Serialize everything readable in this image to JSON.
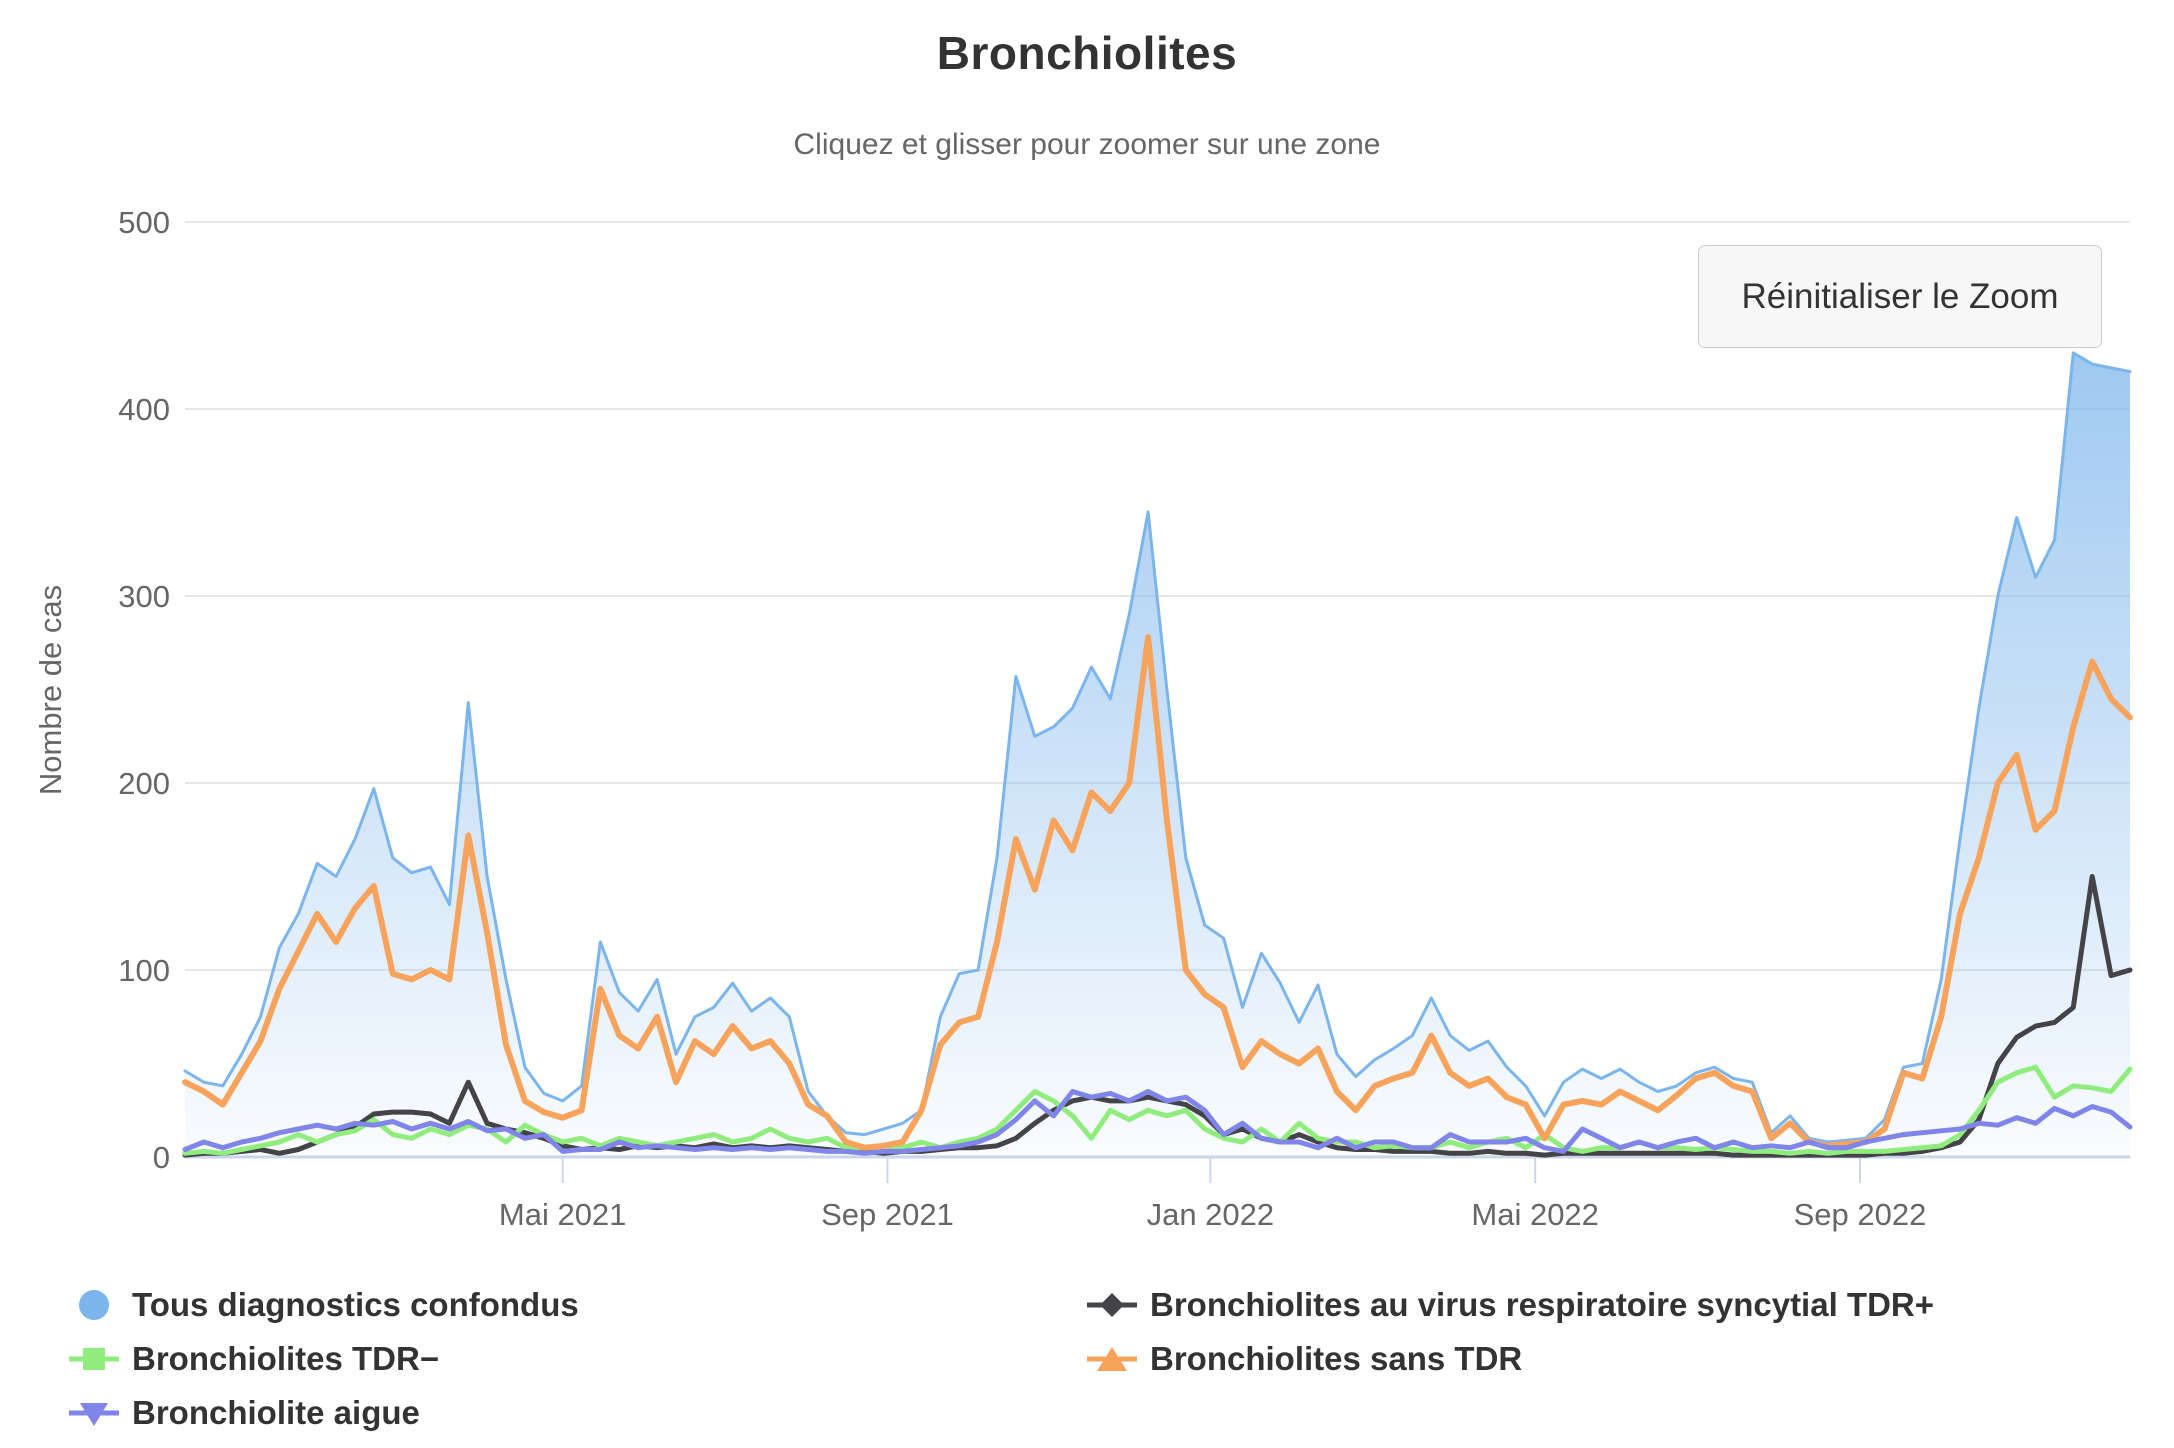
{
  "header": {
    "title": "Bronchiolites",
    "subtitle": "Cliquez et glisser pour zoomer sur une zone"
  },
  "toolbar": {
    "reset_zoom_label": "Réinitialiser le Zoom"
  },
  "axis_style": {
    "grid_color": "#e6e6e6",
    "axis_line_color": "#ccd6eb",
    "label_color": "#666666"
  },
  "chart_data": {
    "type": "area",
    "title": "Bronchiolites",
    "subtitle": "Cliquez et glisser pour zoomer sur une zone",
    "xlabel": "",
    "ylabel": "Nombre de cas",
    "ylim": [
      0,
      500
    ],
    "yticks": [
      0,
      100,
      200,
      300,
      400,
      500
    ],
    "x_unit": "week",
    "grid": true,
    "legend_position": "bottom",
    "xticks": [
      {
        "label": "Mai 2021",
        "index": 20.0
      },
      {
        "label": "Sep 2021",
        "index": 37.2
      },
      {
        "label": "Jan 2022",
        "index": 54.3
      },
      {
        "label": "Mai 2022",
        "index": 71.5
      },
      {
        "label": "Sep 2022",
        "index": 88.7
      }
    ],
    "series": [
      {
        "name": "Tous diagnostics confondus",
        "color": "#7cb5ec",
        "marker": "circle",
        "type": "area",
        "line_width": 3,
        "values": [
          46,
          40,
          38,
          55,
          75,
          112,
          130,
          157,
          150,
          170,
          197,
          160,
          152,
          155,
          135,
          243,
          150,
          95,
          48,
          34,
          30,
          38,
          115,
          88,
          78,
          95,
          55,
          75,
          80,
          93,
          78,
          85,
          75,
          35,
          22,
          13,
          12,
          15,
          18,
          25,
          75,
          98,
          100,
          160,
          257,
          225,
          230,
          240,
          262,
          245,
          290,
          345,
          250,
          160,
          124,
          117,
          80,
          109,
          93,
          72,
          92,
          55,
          43,
          52,
          58,
          65,
          85,
          65,
          57,
          62,
          48,
          38,
          22,
          40,
          47,
          42,
          47,
          40,
          35,
          38,
          45,
          48,
          42,
          40,
          13,
          22,
          10,
          8,
          9,
          10,
          20,
          48,
          50,
          95,
          170,
          240,
          300,
          342,
          310,
          330,
          430,
          424,
          422,
          420
        ]
      },
      {
        "name": "Bronchiolites au virus respiratoire syncytial TDR+",
        "color": "#434348",
        "marker": "diamond",
        "type": "line",
        "line_width": 5,
        "values": [
          1,
          2,
          2,
          3,
          4,
          2,
          4,
          8,
          12,
          16,
          23,
          24,
          24,
          23,
          18,
          40,
          18,
          15,
          13,
          10,
          6,
          4,
          5,
          4,
          6,
          5,
          6,
          5,
          7,
          5,
          6,
          5,
          6,
          5,
          4,
          3,
          3,
          2,
          3,
          3,
          4,
          5,
          5,
          6,
          10,
          18,
          25,
          30,
          32,
          30,
          30,
          32,
          30,
          28,
          22,
          12,
          15,
          10,
          8,
          12,
          8,
          5,
          4,
          4,
          3,
          3,
          3,
          2,
          2,
          3,
          2,
          2,
          1,
          2,
          2,
          2,
          2,
          2,
          2,
          2,
          2,
          2,
          1,
          1,
          1,
          1,
          1,
          1,
          1,
          1,
          2,
          2,
          3,
          5,
          8,
          20,
          50,
          64,
          70,
          72,
          80,
          150,
          97,
          100
        ]
      },
      {
        "name": "Bronchiolites TDR−",
        "color": "#90ed7d",
        "marker": "square",
        "type": "line",
        "line_width": 5,
        "values": [
          2,
          3,
          2,
          4,
          6,
          8,
          12,
          8,
          12,
          14,
          20,
          12,
          10,
          15,
          12,
          17,
          15,
          8,
          17,
          12,
          8,
          10,
          6,
          10,
          8,
          6,
          8,
          10,
          12,
          8,
          10,
          15,
          10,
          8,
          10,
          5,
          5,
          6,
          5,
          8,
          5,
          8,
          10,
          15,
          25,
          35,
          30,
          22,
          10,
          25,
          20,
          25,
          22,
          25,
          15,
          10,
          8,
          15,
          8,
          18,
          10,
          8,
          8,
          5,
          6,
          5,
          5,
          8,
          5,
          8,
          10,
          5,
          12,
          5,
          3,
          5,
          5,
          8,
          5,
          5,
          4,
          5,
          4,
          3,
          3,
          2,
          3,
          2,
          3,
          3,
          3,
          4,
          5,
          6,
          12,
          25,
          40,
          45,
          48,
          32,
          38,
          37,
          35,
          47
        ]
      },
      {
        "name": "Bronchiolites sans TDR",
        "color": "#f7a35c",
        "marker": "triangle-up",
        "type": "line",
        "line_width": 6,
        "values": [
          40,
          35,
          28,
          45,
          62,
          90,
          110,
          130,
          115,
          133,
          145,
          98,
          95,
          100,
          95,
          172,
          120,
          60,
          30,
          24,
          21,
          25,
          90,
          65,
          58,
          75,
          40,
          62,
          55,
          70,
          58,
          62,
          50,
          28,
          22,
          8,
          5,
          6,
          8,
          25,
          60,
          72,
          75,
          115,
          170,
          143,
          180,
          164,
          195,
          185,
          200,
          278,
          180,
          100,
          87,
          80,
          48,
          62,
          55,
          50,
          58,
          35,
          25,
          38,
          42,
          45,
          65,
          45,
          38,
          42,
          32,
          28,
          10,
          28,
          30,
          28,
          35,
          30,
          25,
          33,
          42,
          45,
          38,
          35,
          10,
          18,
          8,
          6,
          7,
          8,
          15,
          45,
          42,
          75,
          130,
          160,
          200,
          215,
          175,
          185,
          230,
          265,
          245,
          235
        ]
      },
      {
        "name": "Bronchiolite aigue",
        "color": "#8085e9",
        "marker": "triangle-down",
        "type": "line",
        "line_width": 5,
        "values": [
          4,
          8,
          5,
          8,
          10,
          13,
          15,
          17,
          15,
          18,
          17,
          19,
          15,
          18,
          15,
          19,
          14,
          15,
          10,
          12,
          3,
          4,
          4,
          8,
          5,
          6,
          5,
          4,
          5,
          4,
          5,
          4,
          5,
          4,
          3,
          3,
          2,
          3,
          3,
          4,
          5,
          6,
          8,
          12,
          20,
          30,
          22,
          35,
          32,
          34,
          30,
          35,
          30,
          32,
          25,
          12,
          18,
          10,
          8,
          8,
          5,
          10,
          5,
          8,
          8,
          5,
          5,
          12,
          8,
          8,
          8,
          10,
          5,
          3,
          15,
          10,
          5,
          8,
          5,
          8,
          10,
          5,
          8,
          5,
          6,
          5,
          8,
          5,
          5,
          8,
          10,
          12,
          13,
          14,
          15,
          18,
          17,
          21,
          18,
          26,
          22,
          27,
          24,
          16
        ]
      }
    ]
  }
}
